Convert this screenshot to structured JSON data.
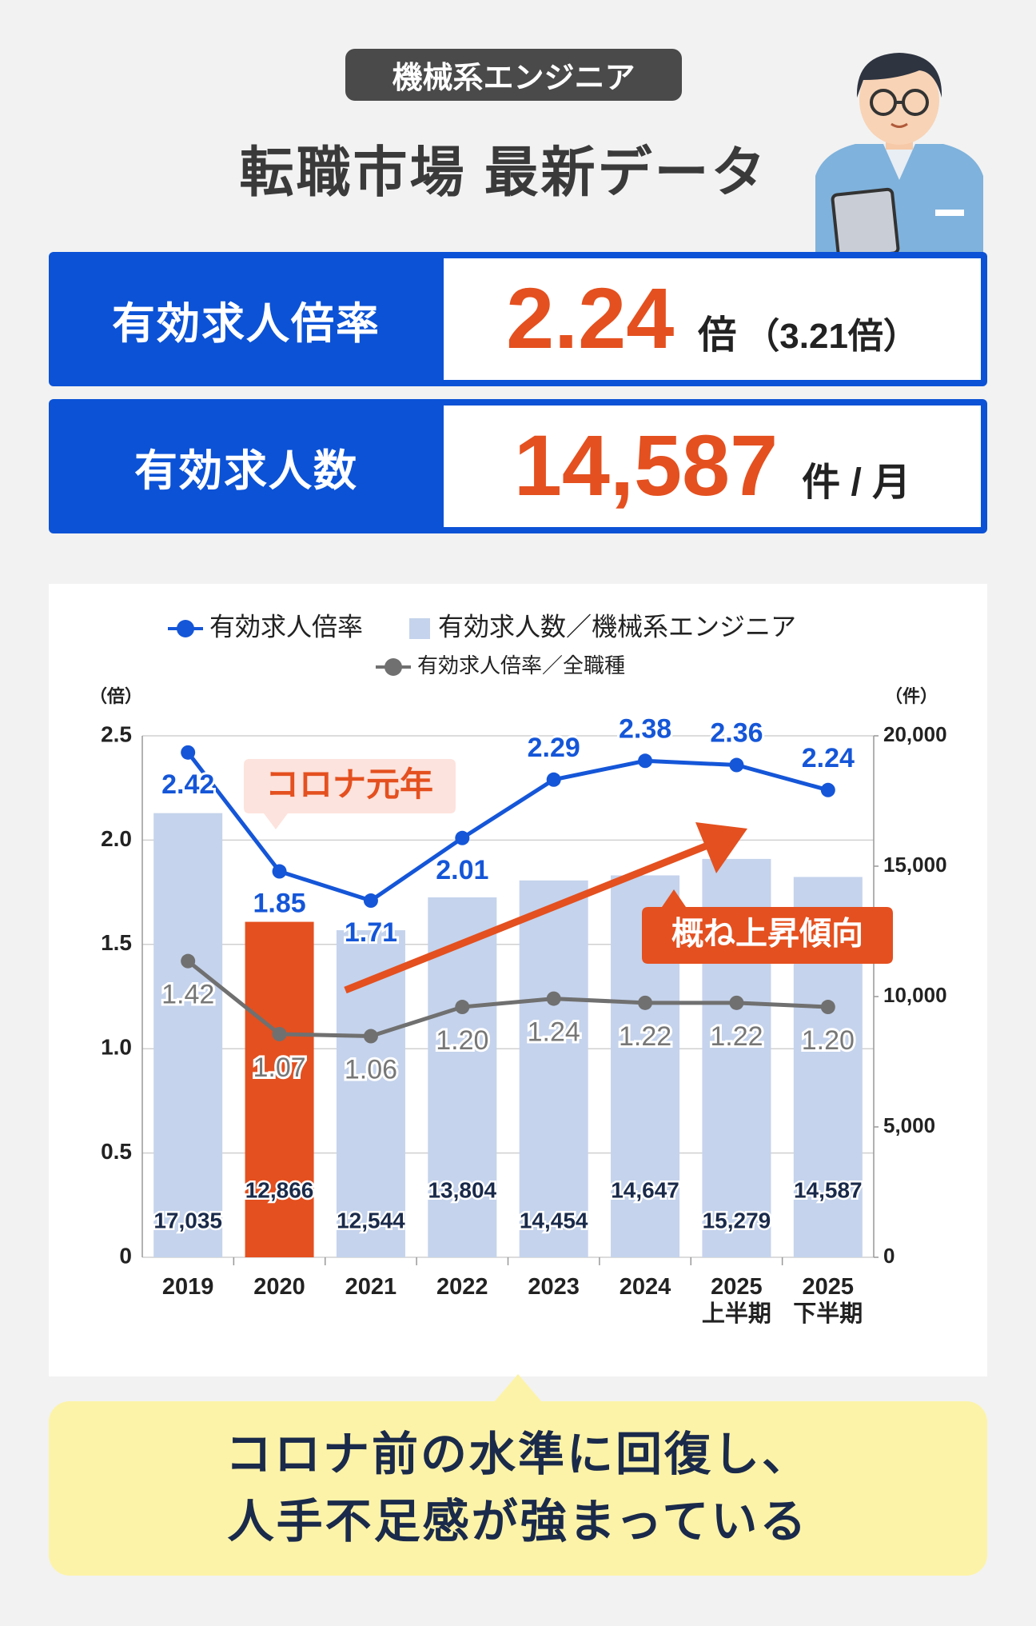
{
  "header": {
    "tag": "機械系エンジニア",
    "title": "転職市場 最新データ"
  },
  "stats": [
    {
      "label": "有効求人倍率",
      "value": "2.24",
      "unit": "倍",
      "note": "（3.21倍）"
    },
    {
      "label": "有効求人数",
      "value": "14,587",
      "unit": "件 / 月"
    }
  ],
  "chart_data": {
    "type": "bar",
    "categories": [
      "2019",
      "2020",
      "2021",
      "2022",
      "2023",
      "2024",
      "2025\n上半期",
      "2025\n下半期"
    ],
    "y_label": "（倍）",
    "y2_label": "（件）",
    "ylim": [
      0,
      2.5
    ],
    "yticks": [
      0,
      0.5,
      {
        "value": 1,
        "label": "1.0"
      },
      1.5,
      {
        "value": 2,
        "label": "2.0"
      },
      2.5
    ],
    "y2lim": [
      0,
      20000
    ],
    "y2ticks": [
      0,
      {
        "value": 5000,
        "label": "5,000"
      },
      {
        "value": 10000,
        "label": "10,000"
      },
      {
        "value": 15000,
        "label": "15,000"
      },
      {
        "value": 20000,
        "label": "20,000"
      }
    ],
    "grid": true,
    "series": [
      {
        "name": "有効求人数／機械系エンジニア",
        "type": "bar",
        "axis": "y2",
        "color": "#c5d3ec",
        "colors": [
          "#c5d3ec",
          "#e4501f",
          "#c5d3ec",
          "#c5d3ec",
          "#c5d3ec",
          "#c5d3ec",
          "#c5d3ec",
          "#c5d3ec"
        ],
        "values": [
          17035,
          12866,
          12544,
          13804,
          14454,
          14647,
          15279,
          14587
        ],
        "value_labels": [
          "17,035",
          "12,866",
          "12,544",
          "13,804",
          "14,454",
          "14,647",
          "15,279",
          "14,587"
        ]
      },
      {
        "name": "有効求人倍率",
        "type": "line",
        "color": "#1556d8",
        "values": [
          2.42,
          1.85,
          1.71,
          2.01,
          2.29,
          2.38,
          2.36,
          2.24
        ],
        "value_labels": [
          "2.42",
          "1.85",
          "1.71",
          "2.01",
          "2.29",
          "2.38",
          "2.36",
          "2.24"
        ]
      },
      {
        "name": "有効求人倍率／全職種",
        "type": "line",
        "color": "#707070",
        "values": [
          1.42,
          1.07,
          1.06,
          1.2,
          1.24,
          1.22,
          1.22,
          1.2
        ],
        "value_labels": [
          "1.42",
          "1.07",
          "1.06",
          "1.20",
          "1.24",
          "1.22",
          "1.22",
          "1.20"
        ]
      }
    ],
    "annotations": [
      "コロナ元年",
      "概ね上昇傾向"
    ]
  },
  "callout": {
    "lines": [
      "コロナ前の水準に回復し、",
      "人手不足感が強まっている"
    ]
  }
}
